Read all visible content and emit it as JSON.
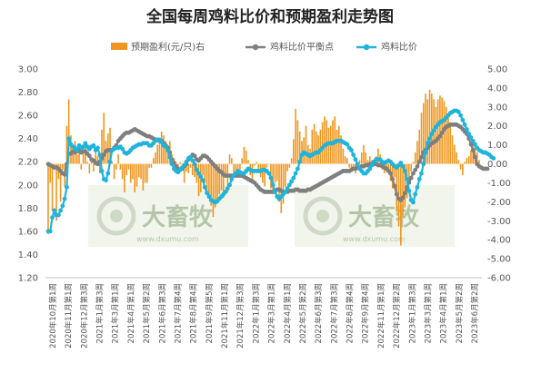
{
  "watermark": {
    "brand": "大畜牧",
    "site": "www.dxumu.com"
  },
  "chart_data": {
    "type": "bar+line",
    "title": "全国每周鸡料比价和预期盈利走势图",
    "legend_position": "top",
    "colors": {
      "bar": "#f0961e",
      "balance": "#7f7f7f",
      "ratio": "#1eb4dc"
    },
    "y_left": {
      "min": 1.2,
      "max": 3.0,
      "step": 0.2,
      "tick_labels": [
        "1.20",
        "1.40",
        "1.60",
        "1.80",
        "2.00",
        "2.20",
        "2.40",
        "2.60",
        "2.80",
        "3.00"
      ]
    },
    "y_right": {
      "min": -6.0,
      "max": 5.0,
      "step": 1.0,
      "tick_labels": [
        "-6.00",
        "-5.00",
        "-4.00",
        "-3.00",
        "-2.00",
        "-1.00",
        "0.00",
        "1.00",
        "2.00",
        "3.00",
        "4.00",
        "5.00"
      ]
    },
    "x_labels": [
      "2020年10月第1周",
      "2020年11月第1周",
      "2020年12月第3周",
      "2021年1月第3周",
      "2021年3月第1周",
      "2021年4月第1周",
      "2021年5月第2周",
      "2021年6月第3周",
      "2021年7月第4周",
      "2021年8月第4周",
      "2021年9月第5周",
      "2021年11月第1周",
      "2021年12月第3周",
      "2022年1月第3周",
      "2022年3月第1周",
      "2022年4月第1周",
      "2022年5月第2周",
      "2022年6月第3周",
      "2022年7月第3周",
      "2022年8月第4周",
      "2022年9月第4周",
      "2022年11月第1周",
      "2022年12月第2周",
      "2023年1月第3周",
      "2023年3月第1周",
      "2023年4月第1周",
      "2023年5月第2周",
      "2023年6月第2周"
    ],
    "series": [
      {
        "name": "预期盈利(元/只)右",
        "type": "bar",
        "axis": "right",
        "values": [
          -3.7,
          -1.0,
          -2.5,
          -0.3,
          -3.0,
          -0.8,
          -2.0,
          -0.3,
          -1.2,
          2.0,
          3.4,
          1.5,
          0.5,
          1.2,
          0.5,
          0.8,
          -0.3,
          0.7,
          0.9,
          0.1,
          -0.5,
          0.2,
          -0.4,
          0.8,
          0.4,
          -0.5,
          1.8,
          2.7,
          1.2,
          1.6,
          1.9,
          0.1,
          -0.8,
          -0.3,
          0.5,
          -0.3,
          -0.8,
          -1.5,
          -0.6,
          -0.3,
          -1.0,
          -0.8,
          -1.5,
          -1.2,
          -0.7,
          -0.8,
          -1.4,
          -1.0,
          -1.0,
          -0.2,
          -0.2,
          0.3,
          0.6,
          1.0,
          1.3,
          1.7,
          1.5,
          1.2,
          1.0,
          1.2,
          0.5,
          0.3,
          0.1,
          -0.5,
          0.1,
          -0.2,
          -1.0,
          -0.4,
          -0.5,
          -0.2,
          -0.6,
          -0.7,
          -1.0,
          -1.7,
          -1.5,
          -0.6,
          -1.0,
          -1.4,
          -1.7,
          -2.2,
          -2.8,
          -2.3,
          -2.1,
          -1.6,
          -1.4,
          -1.8,
          -0.7,
          -1.5,
          0.5,
          0.3,
          -0.5,
          -0.6,
          -0.4,
          -0.3,
          0.3,
          0.9,
          0.7,
          0.2,
          -0.6,
          -0.9,
          -0.1,
          0.1,
          -0.3,
          -0.7,
          -1.0,
          -1.2,
          -0.2,
          0.0,
          -1.3,
          -1.6,
          -1.0,
          -0.9,
          -2.0,
          -2.6,
          -2.1,
          -1.2,
          -0.4,
          -0.2,
          0.3,
          1.3,
          2.9,
          2.3,
          1.7,
          1.2,
          1.4,
          2.0,
          1.0,
          0.8,
          1.8,
          2.1,
          1.7,
          1.5,
          1.8,
          2.2,
          2.5,
          2.3,
          1.9,
          2.0,
          2.3,
          2.5,
          1.8,
          2.0,
          1.5,
          0.8,
          0.4,
          0.3,
          -0.2,
          -0.4,
          -0.3,
          -0.5,
          0.1,
          0.2,
          0.6,
          1.0,
          0.6,
          0.2,
          0.4,
          0.2,
          0.1,
          0.4,
          0.8,
          0.5,
          -0.3,
          -0.5,
          -0.2,
          -0.4,
          -0.9,
          -1.3,
          -0.7,
          -2.5,
          -3.3,
          -4.3,
          -2.8,
          -2.3,
          -1.8,
          -1.0,
          -0.4,
          0.1,
          0.6,
          1.2,
          1.8,
          2.7,
          3.2,
          3.7,
          3.4,
          3.9,
          3.7,
          3.4,
          3.0,
          3.4,
          3.6,
          3.5,
          3.3,
          3.0,
          2.6,
          2.1,
          1.5,
          1.0,
          0.6,
          0.2,
          -0.3,
          -0.6,
          0.1,
          0.3,
          0.4,
          0.7,
          1.2,
          1.0,
          0.6,
          0.2
        ]
      },
      {
        "name": "鸡料比价平衡点",
        "type": "line",
        "axis": "left",
        "values": [
          2.18,
          2.17,
          2.16,
          2.15,
          2.15,
          2.14,
          2.12,
          2.1,
          2.09,
          2.18,
          2.27,
          2.27,
          2.29,
          2.28,
          2.29,
          2.3,
          2.28,
          2.29,
          2.29,
          2.27,
          2.25,
          2.22,
          2.21,
          2.19,
          2.18,
          2.2,
          2.23,
          2.26,
          2.29,
          2.3,
          2.3,
          2.3,
          2.32,
          2.34,
          2.38,
          2.4,
          2.42,
          2.44,
          2.45,
          2.45,
          2.46,
          2.47,
          2.48,
          2.47,
          2.46,
          2.45,
          2.44,
          2.43,
          2.42,
          2.42,
          2.41,
          2.4,
          2.39,
          2.39,
          2.38,
          2.38,
          2.36,
          2.34,
          2.32,
          2.28,
          2.22,
          2.19,
          2.16,
          2.14,
          2.13,
          2.14,
          2.16,
          2.18,
          2.22,
          2.24,
          2.26,
          2.25,
          2.22,
          2.21,
          2.23,
          2.25,
          2.25,
          2.24,
          2.22,
          2.2,
          2.18,
          2.16,
          2.14,
          2.12,
          2.11,
          2.09,
          2.08,
          2.08,
          2.08,
          2.08,
          2.08,
          2.08,
          2.08,
          2.08,
          2.08,
          2.07,
          2.06,
          2.05,
          2.04,
          2.03,
          2.02,
          2.0,
          1.98,
          1.96,
          1.95,
          1.94,
          1.94,
          1.94,
          1.94,
          1.94,
          1.95,
          1.96,
          1.96,
          1.95,
          1.94,
          1.94,
          1.94,
          1.95,
          1.95,
          1.95,
          1.96,
          1.96,
          1.95,
          1.95,
          1.95,
          1.95,
          1.96,
          1.96,
          1.97,
          1.98,
          1.99,
          2.0,
          2.01,
          2.02,
          2.03,
          2.04,
          2.05,
          2.06,
          2.07,
          2.08,
          2.09,
          2.1,
          2.11,
          2.12,
          2.12,
          2.12,
          2.12,
          2.13,
          2.14,
          2.14,
          2.15,
          2.15,
          2.16,
          2.16,
          2.17,
          2.17,
          2.18,
          2.18,
          2.18,
          2.18,
          2.17,
          2.17,
          2.16,
          2.15,
          2.14,
          2.12,
          2.1,
          2.05,
          1.99,
          1.92,
          1.88,
          1.87,
          1.89,
          1.93,
          1.98,
          2.02,
          2.06,
          2.1,
          2.13,
          2.16,
          2.2,
          2.24,
          2.28,
          2.3,
          2.32,
          2.34,
          2.36,
          2.37,
          2.38,
          2.4,
          2.42,
          2.45,
          2.48,
          2.5,
          2.51,
          2.52,
          2.52,
          2.52,
          2.52,
          2.51,
          2.5,
          2.48,
          2.46,
          2.44,
          2.4,
          2.35,
          2.3,
          2.24,
          2.18,
          2.16,
          2.15,
          2.14,
          2.14,
          2.14
        ]
      },
      {
        "name": "鸡料比价",
        "type": "line",
        "axis": "left",
        "values": [
          1.6,
          1.6,
          1.72,
          1.78,
          1.74,
          1.74,
          1.78,
          1.82,
          1.88,
          1.98,
          2.4,
          2.35,
          2.33,
          2.32,
          2.3,
          2.34,
          2.32,
          2.33,
          2.36,
          2.33,
          2.31,
          2.33,
          2.34,
          2.3,
          2.32,
          2.26,
          2.12,
          2.05,
          2.04,
          2.1,
          2.2,
          2.3,
          2.31,
          2.32,
          2.32,
          2.33,
          2.31,
          2.28,
          2.27,
          2.28,
          2.3,
          2.32,
          2.33,
          2.34,
          2.35,
          2.35,
          2.36,
          2.36,
          2.36,
          2.34,
          2.34,
          2.36,
          2.38,
          2.39,
          2.39,
          2.37,
          2.34,
          2.33,
          2.3,
          2.24,
          2.18,
          2.14,
          2.12,
          2.11,
          2.13,
          2.15,
          2.17,
          2.2,
          2.23,
          2.24,
          2.21,
          2.18,
          2.13,
          2.1,
          2.07,
          2.04,
          1.98,
          1.93,
          1.9,
          1.87,
          1.86,
          1.85,
          1.86,
          1.88,
          1.9,
          1.92,
          1.94,
          1.97,
          2.0,
          2.05,
          2.08,
          2.1,
          2.12,
          2.11,
          2.1,
          2.1,
          2.12,
          2.14,
          2.13,
          2.12,
          2.12,
          2.12,
          2.12,
          2.12,
          2.13,
          2.13,
          2.12,
          2.1,
          2.06,
          2.0,
          1.94,
          1.9,
          1.88,
          1.9,
          1.92,
          1.94,
          1.97,
          2.0,
          2.03,
          2.06,
          2.1,
          2.14,
          2.2,
          2.26,
          2.28,
          2.27,
          2.26,
          2.25,
          2.26,
          2.27,
          2.28,
          2.28,
          2.3,
          2.32,
          2.34,
          2.35,
          2.36,
          2.36,
          2.36,
          2.37,
          2.38,
          2.38,
          2.38,
          2.37,
          2.36,
          2.35,
          2.32,
          2.3,
          2.26,
          2.22,
          2.18,
          2.14,
          2.12,
          2.1,
          2.1,
          2.12,
          2.14,
          2.17,
          2.2,
          2.22,
          2.22,
          2.22,
          2.2,
          2.19,
          2.2,
          2.21,
          2.2,
          2.18,
          2.16,
          2.15,
          2.17,
          2.19,
          2.16,
          2.12,
          2.05,
          1.95,
          1.87,
          1.85,
          1.92,
          1.98,
          2.05,
          2.1,
          2.18,
          2.28,
          2.36,
          2.4,
          2.44,
          2.47,
          2.5,
          2.52,
          2.54,
          2.55,
          2.56,
          2.58,
          2.6,
          2.62,
          2.63,
          2.64,
          2.64,
          2.63,
          2.6,
          2.56,
          2.52,
          2.48,
          2.44,
          2.41,
          2.38,
          2.35,
          2.32,
          2.3,
          2.29,
          2.28,
          2.28,
          2.27,
          2.26,
          2.24,
          2.23
        ]
      }
    ]
  }
}
